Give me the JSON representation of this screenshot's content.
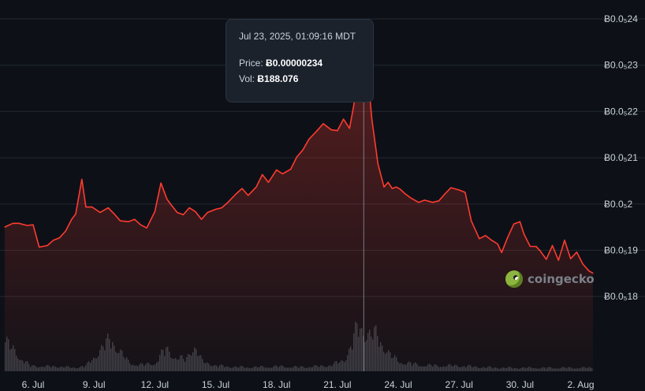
{
  "colors": {
    "background": "#0d1117",
    "price_line": "#ff3b30",
    "volume_bar": "#3a4149",
    "grid": "#222831",
    "axis_text": "#c9d1d9"
  },
  "tooltip": {
    "date": "Jul 23, 2025, 01:09:16 MDT",
    "price_label": "Price:",
    "price_value": "Ƀ0.00000234",
    "vol_label": "Vol:",
    "vol_value": "Ƀ188.076"
  },
  "watermark": {
    "text": "coingecko",
    "icon": "coingecko-logo-icon"
  },
  "chart_data": {
    "type": "area",
    "title": "",
    "xlabel": "",
    "ylabel": "",
    "grid": true,
    "x_ticks": [
      "6. Jul",
      "9. Jul",
      "12. Jul",
      "15. Jul",
      "18. Jul",
      "21. Jul",
      "24. Jul",
      "27. Jul",
      "30. Jul",
      "2. Aug"
    ],
    "y_ticks": [
      {
        "label": "Ƀ0.0₅24",
        "value": 2.4e-06
      },
      {
        "label": "Ƀ0.0₅23",
        "value": 2.3e-06
      },
      {
        "label": "Ƀ0.0₅22",
        "value": 2.2e-06
      },
      {
        "label": "Ƀ0.0₅21",
        "value": 2.1e-06
      },
      {
        "label": "Ƀ0.0₅2",
        "value": 2e-06
      },
      {
        "label": "Ƀ0.0₅19",
        "value": 1.9e-06
      },
      {
        "label": "Ƀ0.0₅18",
        "value": 1.8e-06
      }
    ],
    "ylim": [
      1.79e-06,
      2.4e-06
    ],
    "xlim": [
      4.6,
      33.6
    ],
    "crosshair_x": 22.3,
    "series": [
      {
        "x": [
          4.6,
          5.0,
          5.3,
          5.7,
          6.0,
          6.3,
          6.7,
          7.0,
          7.3,
          7.6,
          7.9,
          8.1,
          8.4,
          8.6,
          8.9,
          9.3,
          9.7,
          10.0,
          10.3,
          10.7,
          11.0,
          11.3,
          11.6,
          12.0,
          12.3,
          12.6,
          12.8,
          13.1,
          13.4,
          13.7,
          14.0,
          14.3,
          14.6,
          15.0,
          15.3,
          15.6,
          16.0,
          16.3,
          16.6,
          17.0,
          17.3,
          17.6,
          18.0,
          18.3,
          18.7,
          19.0,
          19.3,
          19.6,
          20.0,
          20.3,
          20.7,
          21.0,
          21.3,
          21.6,
          21.9,
          22.1,
          22.3,
          22.5,
          22.7,
          23.0,
          23.3,
          23.5,
          23.7,
          23.9,
          24.1,
          24.3,
          24.6,
          25.0,
          25.3,
          25.7,
          26.0,
          26.3,
          26.6,
          27.0,
          27.3,
          27.6,
          28.0,
          28.3,
          28.6,
          28.9,
          29.1,
          29.4,
          29.7,
          30.0,
          30.2,
          30.5,
          30.8,
          31.0,
          31.3,
          31.6,
          31.9,
          32.2,
          32.5,
          32.8,
          33.1,
          33.4,
          33.6
        ],
        "y": [
          1.9502e-06,
          1.9582e-06,
          1.9582e-06,
          1.9535e-06,
          1.955e-06,
          1.9068e-06,
          1.9102e-06,
          1.9215e-06,
          1.9268e-06,
          1.9415e-06,
          1.9668e-06,
          1.9782e-06,
          2.0535e-06,
          1.9935e-06,
          1.9935e-06,
          1.9817e-06,
          1.9917e-06,
          1.9785e-06,
          1.9635e-06,
          1.9617e-06,
          1.9668e-06,
          1.955e-06,
          1.9482e-06,
          1.9835e-06,
          2.0452e-06,
          2.0103e-06,
          1.9985e-06,
          1.9817e-06,
          1.9768e-06,
          1.9917e-06,
          1.9835e-06,
          1.9668e-06,
          1.9817e-06,
          1.9885e-06,
          1.9917e-06,
          2.0035e-06,
          2.0217e-06,
          2.0335e-06,
          2.0185e-06,
          2.0368e-06,
          2.0635e-06,
          2.0468e-06,
          2.0735e-06,
          2.0652e-06,
          2.0752e-06,
          2.1017e-06,
          2.1168e-06,
          2.1402e-06,
          2.1585e-06,
          2.1735e-06,
          2.1602e-06,
          2.1585e-06,
          2.1835e-06,
          2.1635e-06,
          2.2352e-06,
          2.3285e-06,
          2.3385e-06,
          2.2785e-06,
          2.1835e-06,
          2.0868e-06,
          2.0368e-06,
          2.0468e-06,
          2.0335e-06,
          2.0368e-06,
          2.0318e-06,
          2.0235e-06,
          2.0135e-06,
          2.0035e-06,
          2.0082e-06,
          2.0035e-06,
          2.0068e-06,
          2.0217e-06,
          2.0352e-06,
          2.0302e-06,
          2.0252e-06,
          1.9635e-06,
          1.925e-06,
          1.9317e-06,
          1.9217e-06,
          1.9135e-06,
          1.895e-06,
          1.9285e-06,
          1.9568e-06,
          1.9617e-06,
          1.935e-06,
          1.9085e-06,
          1.908e-06,
          1.8985e-06,
          1.8803e-06,
          1.9102e-06,
          1.8783e-06,
          1.9217e-06,
          1.8817e-06,
          1.896e-06,
          1.8703e-06,
          1.8553e-06,
          1.8503e-06
        ]
      }
    ],
    "volume": {
      "x": [
        4.6,
        5.2,
        5.8,
        6.5,
        7.2,
        8.0,
        8.6,
        9.2,
        9.6,
        9.9,
        10.2,
        10.7,
        11.4,
        12.0,
        12.5,
        13.0,
        13.5,
        13.9,
        14.3,
        15.0,
        16.0,
        17.0,
        18.0,
        19.0,
        20.0,
        20.7,
        21.3,
        21.7,
        22.0,
        22.3,
        22.6,
        22.9,
        23.2,
        23.6,
        24.0,
        25.0,
        26.0,
        27.0,
        28.0,
        29.0,
        30.0,
        31.0,
        32.0,
        33.0,
        33.6
      ],
      "y": [
        42,
        24,
        8,
        7,
        7,
        5,
        8,
        28,
        40,
        46,
        30,
        12,
        9,
        12,
        32,
        20,
        16,
        38,
        14,
        8,
        6,
        6,
        7,
        6,
        7,
        9,
        16,
        40,
        64,
        58,
        52,
        50,
        40,
        22,
        14,
        9,
        8,
        8,
        6,
        5,
        5,
        5,
        5,
        5,
        5
      ]
    }
  }
}
